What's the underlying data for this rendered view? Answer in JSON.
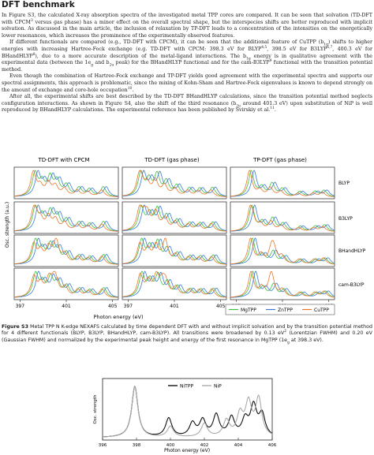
{
  "heading": "DFT benchmark",
  "paragraphs": [
    [
      {
        "t": "In Figure S3, the calculated X-ray absorption spectra of the investigated metal TPP cores are compared.  It can be seen that solvation (TD-DFT with CPCM"
      },
      {
        "t": "3",
        "sup": true
      },
      {
        "t": " versus gas phase) has a minor effect on the overall spectral shape, but the interspecies shifts are better reproduced with implicit solvation.  As discussed in the main article, the inclusion of relaxation by TP-DFT leads to a concentration of the intensities on the energetically lower resonances, which increases the prominence of the experimentally observed features."
      }
    ],
    [
      {
        "t": "If different functionals are compared (e.g., TD-DFT with CPCM), it can be seen that the additional feature of CuTPP (b"
      },
      {
        "t": "1g",
        "sub": true
      },
      {
        "t": ") shifts to higher energies with increasing Hartree-Fock exchange (e.g. TD-DFT with CPCM: 398.3 eV for BLYP"
      },
      {
        "t": "4,5",
        "sup": true
      },
      {
        "t": ", 398.5 eV for B3LYP"
      },
      {
        "t": "6,7",
        "sup": true
      },
      {
        "t": ", 400.3 eV for BHandHLYP"
      },
      {
        "t": "8",
        "sup": true
      },
      {
        "t": "), due to a more accurate description of the metal-ligand interactions.  The b"
      },
      {
        "t": "1g",
        "sub": true
      },
      {
        "t": " energy is in qualitative agreement with the experimental data (between the 1e"
      },
      {
        "t": "g",
        "sub": true
      },
      {
        "t": " and b"
      },
      {
        "t": "2u",
        "sub": true
      },
      {
        "t": " peak) for the BHandHLYP functional and for the cam-B3LYP"
      },
      {
        "t": "9",
        "sup": true
      },
      {
        "t": " functional with the transition potential method."
      }
    ],
    [
      {
        "t": "Even though the combination of Hartree-Fock exchange and TP-DFT yields good agreement with the experimental spectra and supports our spectral assignments, this approach is problematic, since the mixing of Kohn-Sham and Hartree-Fock eigenvalues is known to depend strongly on the amount of exchange and core-hole occupation"
      },
      {
        "t": "10",
        "sup": true
      },
      {
        "t": "."
      }
    ],
    [
      {
        "t": "After all, the experimental shifts are best described by the TD-DFT BHandHLYP calculations, since the transition potential method neglects configuration interactions.  As shown in Figure S4, also the shift of the third resonance (b"
      },
      {
        "t": "2u",
        "sub": true
      },
      {
        "t": " around 401.3 eV) upon substitution of NiP is well reproduced by BHandHLYP calculations.  The experimental reference has been published by Svirskiy et al."
      },
      {
        "t": "11",
        "sup": true
      },
      {
        "t": "."
      }
    ]
  ],
  "figure_s3": {
    "column_titles": [
      "TD-DFT with CPCM",
      "TD-DFT (gas phase)",
      "TP-DFT (gas phase)"
    ],
    "row_labels": [
      "BLYP",
      "B3LYP",
      "BHandHLYP",
      "cam-B3LYP"
    ],
    "ylabel": "Osc. strength (a.u.)",
    "xlabel": "Photon energy (eV)",
    "xticks": [
      "397",
      "401",
      "405"
    ],
    "legend": [
      "MgTPP",
      "ZnTPP",
      "CuTPP"
    ],
    "colors": {
      "MgTPP": "#3fbf3f",
      "ZnTPP": "#3c78d8",
      "CuTPP": "#e8762b"
    }
  },
  "caption": {
    "label": "Figure S3",
    "text_parts": [
      {
        "t": " Metal TPP N K-edge NEXAFS calculated by time dependent DFT with and without implicit solvation and by the transition potential method for 4 different functionals (BLYP, B3LYP, BHandHLYP, cam-B3LYP). All transitions were broadened by 0.13 eV"
      },
      {
        "t": "2",
        "sup": true
      },
      {
        "t": " (Lorentzian FWHM) and 0.20 eV (Gaussian FWHM) and normalized by the experimental peak height and energy of the first resonance in MgTPP (1e"
      },
      {
        "t": "g",
        "sub": true
      },
      {
        "t": " at 398.3 eV)."
      }
    ]
  },
  "figure_s4": {
    "ylabel": "Osc. strength",
    "xlabel": "Photon energy (eV)",
    "xticks": [
      "396",
      "398",
      "400",
      "402",
      "404",
      "406"
    ],
    "legend": [
      "NiTPP",
      "NiP"
    ],
    "colors": {
      "NiTPP": "#111111",
      "NiP": "#aaaaaa"
    }
  },
  "chart_data": [
    {
      "type": "line",
      "title": "",
      "panel_columns": [
        "TD-DFT with CPCM",
        "TD-DFT (gas phase)",
        "TP-DFT (gas phase)"
      ],
      "panel_rows": [
        "BLYP",
        "B3LYP",
        "BHandHLYP",
        "cam-B3LYP"
      ],
      "xlabel": "Photon energy (eV)",
      "ylabel": "Osc. strength (a.u.)",
      "xlim": [
        396.5,
        405.5
      ],
      "xticks": [
        397,
        401,
        405
      ],
      "series_names": [
        "MgTPP",
        "ZnTPP",
        "CuTPP"
      ],
      "peaks_by_column": [
        [
          [
            398.3,
            0.95
          ],
          [
            398.9,
            0.55
          ],
          [
            399.6,
            0.75
          ],
          [
            400.2,
            0.6
          ],
          [
            401.0,
            0.45
          ],
          [
            402.1,
            0.35
          ],
          [
            403.0,
            0.3
          ],
          [
            404.2,
            0.4
          ]
        ],
        [
          [
            398.1,
            0.9
          ],
          [
            398.8,
            0.6
          ],
          [
            399.5,
            0.8
          ],
          [
            400.3,
            0.55
          ],
          [
            401.2,
            0.4
          ],
          [
            402.3,
            0.3
          ],
          [
            403.2,
            0.3
          ],
          [
            404.3,
            0.35
          ]
        ],
        [
          [
            398.3,
            1.0
          ],
          [
            399.2,
            0.35
          ],
          [
            400.1,
            0.5
          ],
          [
            401.0,
            0.3
          ],
          [
            402.5,
            0.2
          ],
          [
            403.8,
            0.2
          ],
          [
            404.6,
            0.25
          ]
        ]
      ],
      "series_shifts": {
        "MgTPP": 0.0,
        "ZnTPP": 0.25,
        "CuTPP": -0.15
      },
      "cutpp_b1g_energy": [
        398.3,
        398.5,
        400.3,
        400.0
      ]
    },
    {
      "type": "line",
      "xlabel": "Photon energy (eV)",
      "ylabel": "Osc. strength",
      "xlim": [
        396,
        406
      ],
      "xticks": [
        396,
        398,
        400,
        402,
        404,
        406
      ],
      "series": [
        {
          "name": "NiTPP",
          "peaks": [
            [
              397.9,
              0.95
            ],
            [
              399.9,
              0.35
            ],
            [
              401.3,
              0.25
            ],
            [
              401.9,
              0.3
            ],
            [
              402.7,
              0.4
            ],
            [
              403.6,
              0.35
            ],
            [
              404.4,
              0.3
            ],
            [
              404.9,
              0.55
            ],
            [
              405.4,
              0.4
            ]
          ]
        },
        {
          "name": "NiP",
          "peaks": [
            [
              397.9,
              0.95
            ],
            [
              400.0,
              0.2
            ],
            [
              402.0,
              0.25
            ],
            [
              403.3,
              0.3
            ],
            [
              404.1,
              0.4
            ],
            [
              404.6,
              0.6
            ],
            [
              405.2,
              0.7
            ]
          ]
        }
      ]
    }
  ]
}
